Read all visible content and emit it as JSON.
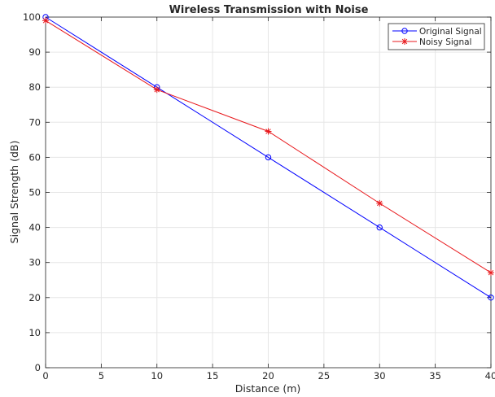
{
  "chart_data": {
    "type": "line",
    "title": "Wireless Transmission with Noise",
    "xlabel": "Distance (m)",
    "ylabel": "Signal Strength (dB)",
    "xlim": [
      0,
      40
    ],
    "ylim": [
      0,
      100
    ],
    "x_ticks": [
      0,
      5,
      10,
      15,
      20,
      25,
      30,
      35,
      40
    ],
    "y_ticks": [
      0,
      10,
      20,
      30,
      40,
      50,
      60,
      70,
      80,
      90,
      100
    ],
    "grid": true,
    "legend_position": "top-right",
    "x": [
      0,
      10,
      20,
      30,
      40
    ],
    "series": [
      {
        "name": "Original Signal",
        "values": [
          100,
          80,
          60,
          40,
          20
        ],
        "color": "#0000ff",
        "marker": "circle"
      },
      {
        "name": "Noisy Signal",
        "values": [
          99,
          79.3,
          67.4,
          46.9,
          27.1
        ],
        "color": "#e8181c",
        "marker": "asterisk"
      }
    ]
  }
}
